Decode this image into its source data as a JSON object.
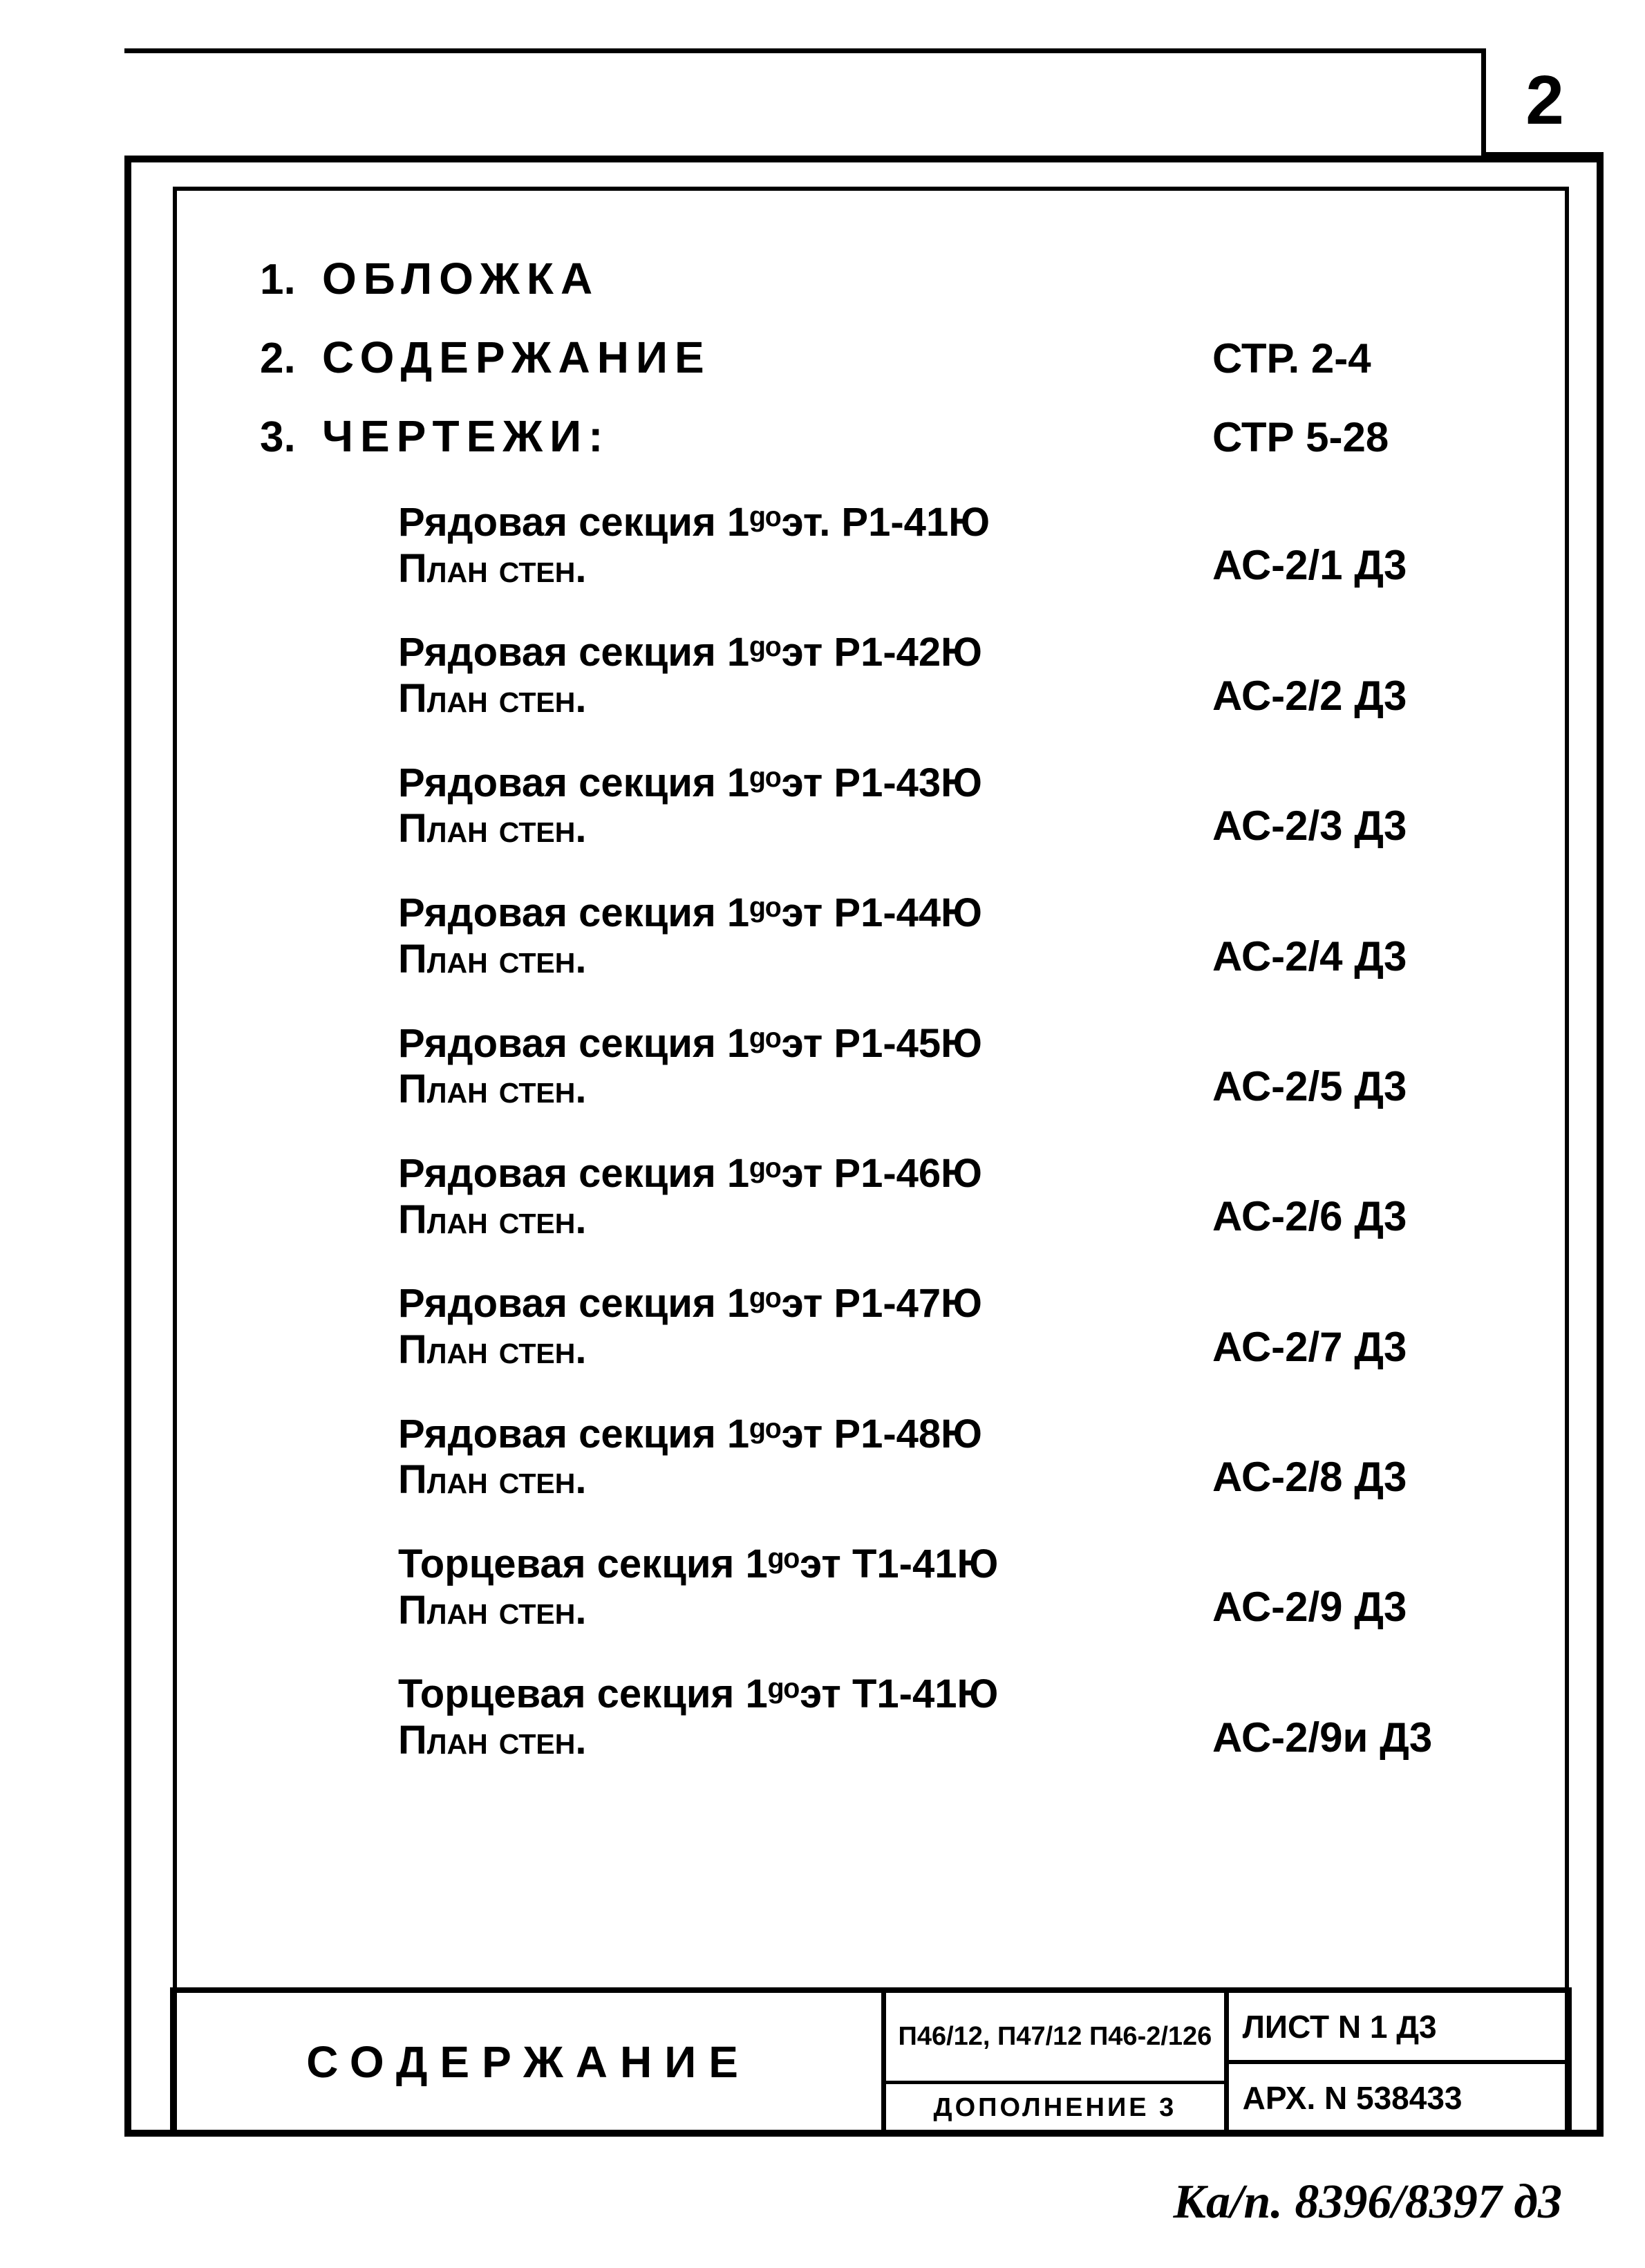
{
  "page_number": "2",
  "headings": [
    {
      "num": "1.",
      "title": "ОБЛОЖКА",
      "pages": ""
    },
    {
      "num": "2.",
      "title": "СОДЕРЖАНИЕ",
      "pages": "СТР. 2-4"
    },
    {
      "num": "3.",
      "title": "ЧЕРТЕЖИ:",
      "pages": "СТР 5-28"
    }
  ],
  "items": [
    {
      "line1": "Рядовая секция 1ᵍᵒэт. Р1-41Ю",
      "line2": "План стен.",
      "code": "АС-2/1 Д3"
    },
    {
      "line1": "Рядовая секция 1ᵍᵒэт Р1-42Ю",
      "line2": "План стен.",
      "code": "АС-2/2 Д3"
    },
    {
      "line1": "Рядовая секция 1ᵍᵒэт Р1-43Ю",
      "line2": "План стен.",
      "code": "АС-2/3 Д3"
    },
    {
      "line1": "Рядовая секция 1ᵍᵒэт Р1-44Ю",
      "line2": "План стен.",
      "code": "АС-2/4 Д3"
    },
    {
      "line1": "Рядовая секция 1ᵍᵒэт Р1-45Ю",
      "line2": "План стен.",
      "code": "АС-2/5 Д3"
    },
    {
      "line1": "Рядовая секция 1ᵍᵒэт Р1-46Ю",
      "line2": "План стен.",
      "code": "АС-2/6 Д3"
    },
    {
      "line1": "Рядовая секция 1ᵍᵒэт Р1-47Ю",
      "line2": "План стен.",
      "code": "АС-2/7 Д3"
    },
    {
      "line1": "Рядовая секция 1ᵍᵒэт Р1-48Ю",
      "line2": "План стен.",
      "code": "АС-2/8 Д3"
    },
    {
      "line1": "Торцевая секция 1ᵍᵒэт Т1-41Ю",
      "line2": "План стен.",
      "code": "АС-2/9 Д3"
    },
    {
      "line1": "Торцевая секция 1ᵍᵒэт Т1-41Ю",
      "line2": "План стен.",
      "code": "АС-2/9и Д3"
    }
  ],
  "title_block": {
    "left": "СОДЕРЖАНИЕ",
    "mid_top": "П46/12, П47/12\nП46-2/126",
    "mid_bot": "ДОПОЛНЕНИЕ 3",
    "right_top": "ЛИСТ N 1 Д3",
    "right_bot": "АРХ. N 538433"
  },
  "footer_note": "Ка/п. 8396/8397 д3",
  "style": {
    "page_bg": "#ffffff",
    "ink": "#000000",
    "border_width_outer": 10,
    "border_width_inner": 6,
    "font_family": "Comic Sans MS, Segoe Script, cursive",
    "heading_fontsize": 64,
    "item_fontsize": 58,
    "code_fontsize": 60,
    "page_number_fontsize": 100,
    "letter_spacing_title": 18
  }
}
